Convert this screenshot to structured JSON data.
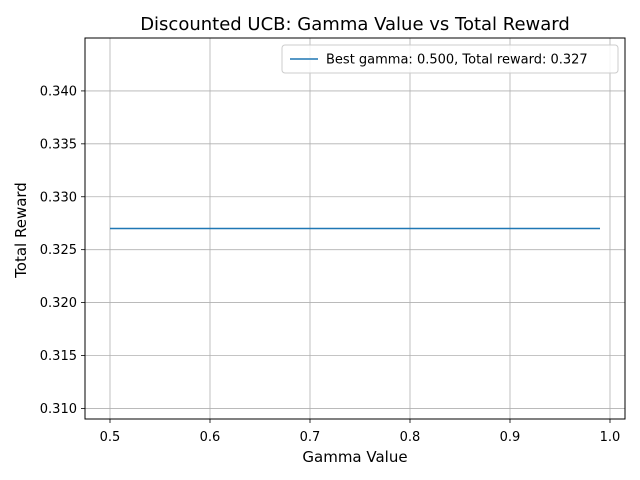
{
  "chart_data": {
    "type": "line",
    "title": "Discounted UCB: Gamma Value vs Total Reward",
    "xlabel": "Gamma Value",
    "ylabel": "Total Reward",
    "xlim": [
      0.475,
      1.015
    ],
    "ylim": [
      0.309,
      0.345
    ],
    "xticks": [
      0.5,
      0.6,
      0.7,
      0.8,
      0.9,
      1.0
    ],
    "xtick_labels": [
      "0.5",
      "0.6",
      "0.7",
      "0.8",
      "0.9",
      "1.0"
    ],
    "yticks": [
      0.31,
      0.315,
      0.32,
      0.325,
      0.33,
      0.335,
      0.34
    ],
    "ytick_labels": [
      "0.310",
      "0.315",
      "0.320",
      "0.325",
      "0.330",
      "0.335",
      "0.340"
    ],
    "grid": true,
    "legend_placement": "top-right",
    "series": [
      {
        "name": "Best gamma: 0.500, Total reward: 0.327",
        "color": "#1f77b4",
        "x": [
          0.5,
          0.99
        ],
        "y": [
          0.327,
          0.327
        ]
      }
    ]
  }
}
